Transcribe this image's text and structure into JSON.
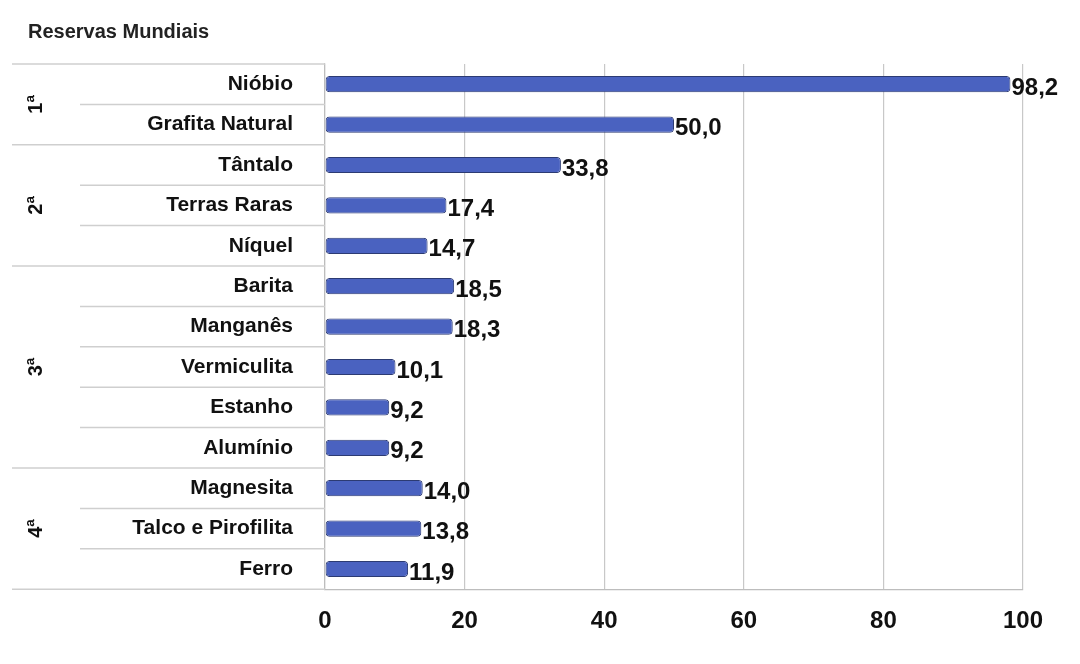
{
  "chart_data": {
    "type": "bar",
    "orientation": "horizontal",
    "title": "Reservas Mundiais",
    "categories": [
      "Nióbio",
      "Grafita Natural",
      "Tântalo",
      "Terras Raras",
      "Níquel",
      "Barita",
      "Manganês",
      "Vermiculita",
      "Estanho",
      "Alumínio",
      "Magnesita",
      "Talco e Pirofilita",
      "Ferro"
    ],
    "values": [
      98.2,
      50.0,
      33.8,
      17.4,
      14.7,
      18.5,
      18.3,
      10.1,
      9.2,
      9.2,
      14.0,
      13.8,
      11.9
    ],
    "value_labels": [
      "98,2",
      "50,0",
      "33,8",
      "17,4",
      "14,7",
      "18,5",
      "18,3",
      "10,1",
      "9,2",
      "9,2",
      "14,0",
      "13,8",
      "11,9"
    ],
    "color": "#4a62c0",
    "xlim": [
      0,
      100
    ],
    "xticks": [
      0,
      20,
      40,
      60,
      80,
      100
    ],
    "grid": "x",
    "annotations": [
      "1ª",
      "2ª",
      "3ª",
      "4ª"
    ]
  }
}
